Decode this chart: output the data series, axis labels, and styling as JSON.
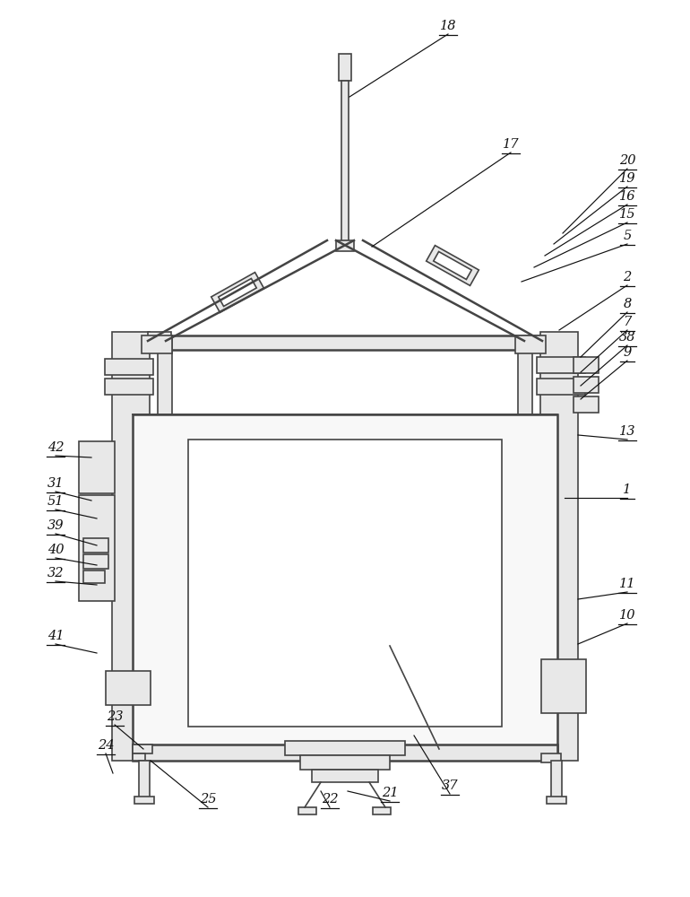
{
  "bg": "#ffffff",
  "lc": "#444444",
  "lw": 1.2,
  "lw2": 1.8,
  "fig_w": 7.7,
  "fig_h": 10.0,
  "dpi": 100,
  "annotations": [
    [
      "18",
      500,
      38,
      390,
      108
    ],
    [
      "17",
      570,
      170,
      415,
      275
    ],
    [
      "20",
      700,
      188,
      628,
      260
    ],
    [
      "19",
      700,
      208,
      618,
      272
    ],
    [
      "16",
      700,
      228,
      608,
      285
    ],
    [
      "15",
      700,
      248,
      596,
      298
    ],
    [
      "5",
      700,
      272,
      582,
      314
    ],
    [
      "2",
      700,
      318,
      624,
      368
    ],
    [
      "8",
      700,
      348,
      648,
      398
    ],
    [
      "7",
      700,
      368,
      648,
      415
    ],
    [
      "38",
      700,
      385,
      648,
      430
    ],
    [
      "9",
      700,
      402,
      648,
      445
    ],
    [
      "13",
      700,
      490,
      645,
      485
    ],
    [
      "1",
      700,
      555,
      630,
      555
    ],
    [
      "11",
      700,
      660,
      645,
      668
    ],
    [
      "10",
      700,
      695,
      645,
      718
    ],
    [
      "42",
      62,
      508,
      102,
      510
    ],
    [
      "31",
      62,
      548,
      102,
      558
    ],
    [
      "51",
      62,
      568,
      108,
      578
    ],
    [
      "39",
      62,
      595,
      108,
      608
    ],
    [
      "40",
      62,
      622,
      108,
      630
    ],
    [
      "32",
      62,
      648,
      108,
      652
    ],
    [
      "41",
      62,
      718,
      108,
      728
    ],
    [
      "23",
      128,
      808,
      160,
      835
    ],
    [
      "24",
      118,
      840,
      126,
      862
    ],
    [
      "25",
      232,
      900,
      168,
      848
    ],
    [
      "22",
      368,
      900,
      358,
      882
    ],
    [
      "21",
      435,
      893,
      388,
      882
    ],
    [
      "37",
      502,
      885,
      462,
      820
    ]
  ]
}
